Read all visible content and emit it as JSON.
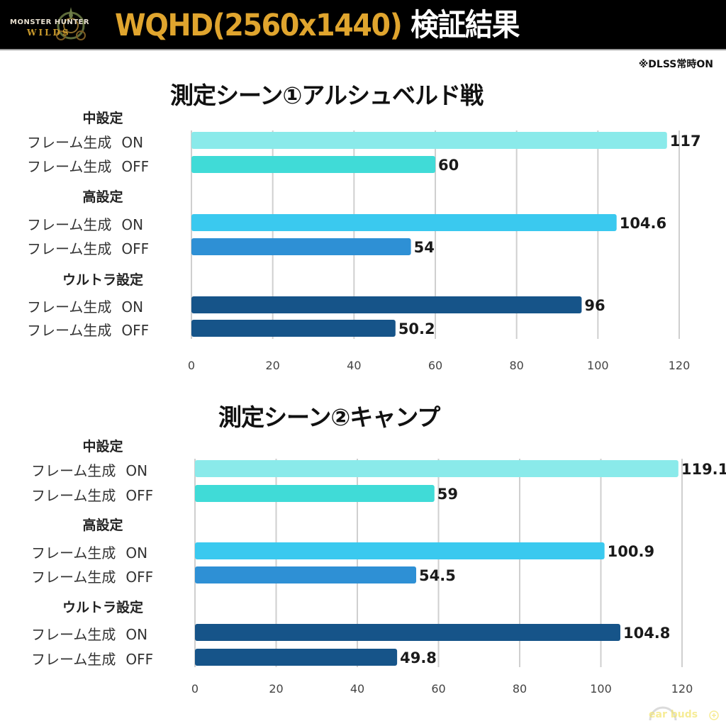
{
  "header": {
    "logo_text_line1": "MONSTER HUNTER",
    "logo_text_line2": "WILDS",
    "title_main": "WQHD(2560x1440)",
    "title_suffix": "検証結果",
    "title_color": "#e0a52e"
  },
  "note": "※DLSS常時ON",
  "watermark": "ear buds",
  "chart_data": [
    {
      "type": "bar",
      "orientation": "horizontal",
      "title": "測定シーン①アルシュベルド戦",
      "xlim": [
        0,
        120
      ],
      "xticks": [
        0,
        20,
        40,
        60,
        80,
        100,
        120
      ],
      "grid": true,
      "groups": [
        {
          "name": "中設定",
          "bars": [
            {
              "label": "フレーム生成",
              "mode": "ON",
              "value": 117,
              "value_label": "117",
              "color": "#8aeaea"
            },
            {
              "label": "フレーム生成",
              "mode": "OFF",
              "value": 60,
              "value_label": "60",
              "color": "#40dbd7"
            }
          ]
        },
        {
          "name": "高設定",
          "bars": [
            {
              "label": "フレーム生成",
              "mode": "ON",
              "value": 104.6,
              "value_label": "104.6",
              "color": "#3ac9ef"
            },
            {
              "label": "フレーム生成",
              "mode": "OFF",
              "value": 54,
              "value_label": "54",
              "color": "#2e90d5"
            }
          ]
        },
        {
          "name": "ウルトラ設定",
          "bars": [
            {
              "label": "フレーム生成",
              "mode": "ON",
              "value": 96,
              "value_label": "96",
              "color": "#165489"
            },
            {
              "label": "フレーム生成",
              "mode": "OFF",
              "value": 50.2,
              "value_label": "50.2",
              "color": "#165489"
            }
          ]
        }
      ]
    },
    {
      "type": "bar",
      "orientation": "horizontal",
      "title": "測定シーン②キャンプ",
      "xlim": [
        0,
        120
      ],
      "xticks": [
        0,
        20,
        40,
        60,
        80,
        100,
        120
      ],
      "grid": true,
      "groups": [
        {
          "name": "中設定",
          "bars": [
            {
              "label": "フレーム生成",
              "mode": "ON",
              "value": 119.1,
              "value_label": "119.1",
              "color": "#8aeaea"
            },
            {
              "label": "フレーム生成",
              "mode": "OFF",
              "value": 59,
              "value_label": "59",
              "color": "#40dbd7"
            }
          ]
        },
        {
          "name": "高設定",
          "bars": [
            {
              "label": "フレーム生成",
              "mode": "ON",
              "value": 100.9,
              "value_label": "100.9",
              "color": "#3ac9ef"
            },
            {
              "label": "フレーム生成",
              "mode": "OFF",
              "value": 54.5,
              "value_label": "54.5",
              "color": "#2e90d5"
            }
          ]
        },
        {
          "name": "ウルトラ設定",
          "bars": [
            {
              "label": "フレーム生成",
              "mode": "ON",
              "value": 104.8,
              "value_label": "104.8",
              "color": "#165489"
            },
            {
              "label": "フレーム生成",
              "mode": "OFF",
              "value": 49.8,
              "value_label": "49.8",
              "color": "#165489"
            }
          ]
        }
      ]
    }
  ]
}
